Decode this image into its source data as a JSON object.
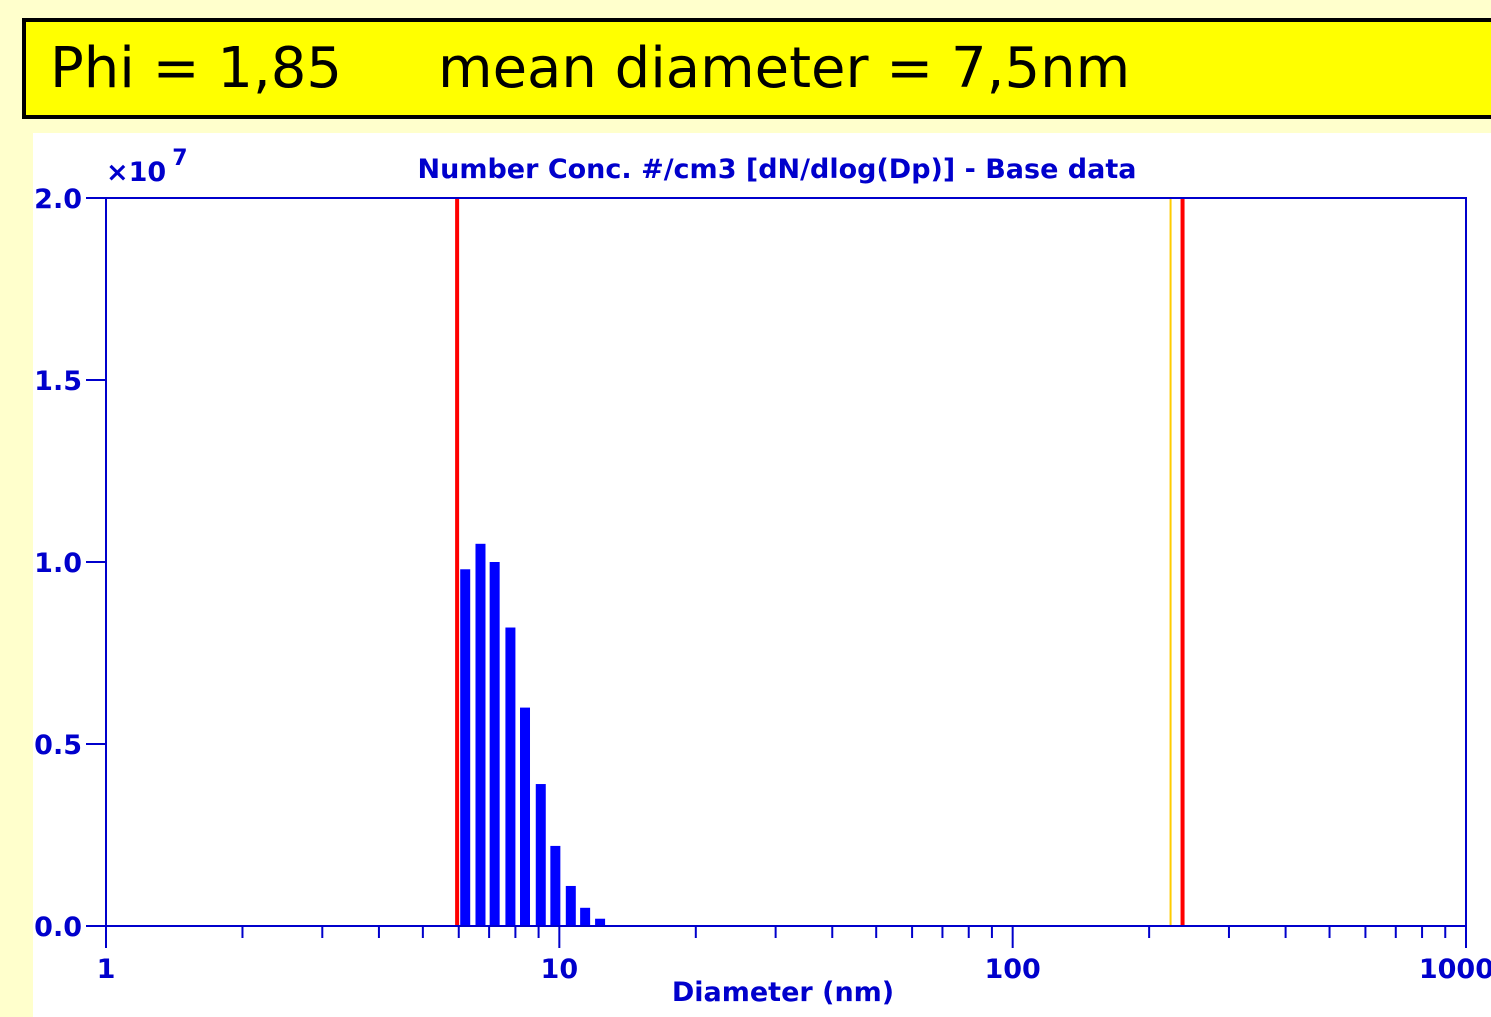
{
  "banner": {
    "phi_text": "Phi = 1,85",
    "mean_text": "mean diameter = 7,5nm"
  },
  "chart_data": {
    "type": "bar",
    "title": "Number Conc. #/cm3 [dN/dlog(Dp)] - Base data",
    "xlabel": "Diameter (nm)",
    "ylabel": "",
    "y_multiplier_base": "×10",
    "y_multiplier_exp": "7",
    "x_scale": "log",
    "xlim": [
      1,
      1000
    ],
    "ylim": [
      0,
      2.0
    ],
    "x_ticks": [
      1,
      10,
      100,
      1000
    ],
    "x_tick_labels": [
      "1",
      "10",
      "100",
      "1000"
    ],
    "y_ticks": [
      0,
      0.5,
      1.0,
      1.5,
      2.0
    ],
    "y_tick_labels": [
      "0.0",
      "0.5",
      "1.0",
      "1.5",
      "2.0"
    ],
    "grid": false,
    "series": [
      {
        "color": "#0000ff",
        "x": [
          6.2,
          6.7,
          7.2,
          7.8,
          8.4,
          9.1,
          9.8,
          10.6,
          11.4,
          12.3
        ],
        "values": [
          0.98,
          1.05,
          1.0,
          0.82,
          0.6,
          0.39,
          0.22,
          0.11,
          0.05,
          0.02
        ]
      }
    ],
    "reference_lines": [
      {
        "color": "#ff0000",
        "x": 5.95
      },
      {
        "color": "#ffcc00",
        "x": 223
      },
      {
        "color": "#ff0000",
        "x": 237
      }
    ],
    "colors": {
      "axis": "#0000cc",
      "text": "#0000cc",
      "bars": "#0000ff",
      "banner_bg": "#ffff00",
      "page_bg": "#ffffcc"
    }
  }
}
